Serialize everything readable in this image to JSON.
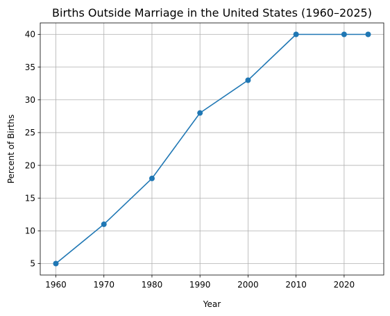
{
  "chart_data": {
    "type": "line",
    "title": "Births Outside Marriage in the United States (1960–2025)",
    "xlabel": "Year",
    "ylabel": "Percent of Births",
    "x": [
      1960,
      1970,
      1980,
      1990,
      2000,
      2010,
      2020,
      2025
    ],
    "series": [
      {
        "values": [
          5,
          11,
          18,
          28,
          33,
          40,
          40,
          40
        ],
        "color": "#1f77b4",
        "marker": "circle"
      }
    ],
    "xlim": [
      1956.75,
      2028.25
    ],
    "ylim": [
      3.25,
      41.75
    ],
    "xticks": [
      1960,
      1970,
      1980,
      1990,
      2000,
      2010,
      2020
    ],
    "yticks": [
      5,
      10,
      15,
      20,
      25,
      30,
      35,
      40
    ],
    "grid": true,
    "legend": "none"
  }
}
